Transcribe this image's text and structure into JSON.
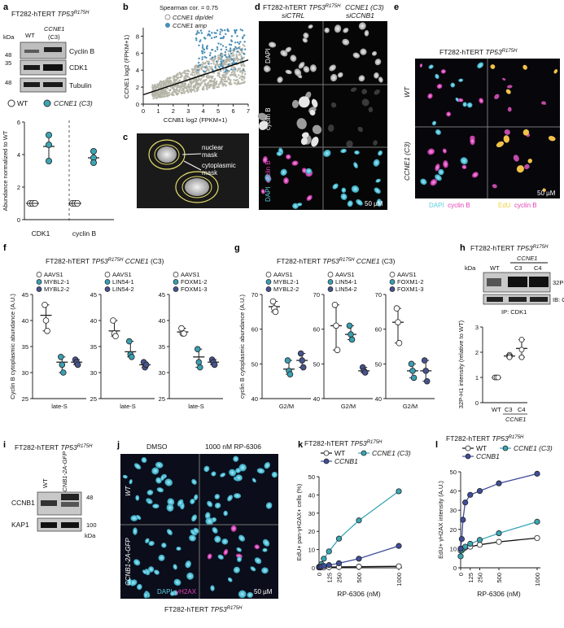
{
  "panel_labels": [
    "a",
    "b",
    "c",
    "d",
    "e",
    "f",
    "g",
    "h",
    "i",
    "j",
    "k",
    "l"
  ],
  "cell_line": "FT282-hTERT",
  "gene_tp53": "TP53",
  "mutation": "R175H",
  "panel_a": {
    "lanes": [
      "WT",
      "CCNE1",
      "(C3)"
    ],
    "kda": "kDa",
    "markers": [
      "48",
      "35",
      "48"
    ],
    "blots": [
      "Cyclin B",
      "CDK1",
      "Tubulin"
    ],
    "legend": [
      "WT",
      "CCNE1 (C3)"
    ]
  },
  "panel_b": {
    "corr": "Spearman cor. = 0.75",
    "legend": [
      "CCNE1 dip/del",
      "CCNE1 amp"
    ]
  },
  "panel_c": {
    "labels": [
      "nuclear",
      "mask",
      "cytoplasmic",
      "mask"
    ]
  },
  "panel_d": {
    "cols": [
      "FT282-hTERT TP53R175H",
      "CCNE1 (C3)",
      "siCTRL",
      "siCCNB1"
    ],
    "rows": [
      "DAPI",
      "cyclin B",
      "DAPI",
      "cyclin B"
    ],
    "scale": "50 µM"
  },
  "panel_e": {
    "rows": [
      "WT",
      "CCNE1 (C3)"
    ],
    "legend": [
      "DAPI",
      "cyclin B",
      "EdU",
      "cyclin B"
    ],
    "scale": "50 µM"
  },
  "panel_f_title": "FT282-hTERT TP53R175H CCNE1 (C3)",
  "panel_g_title": "FT282-hTERT TP53R175H CCNE1 (C3)",
  "panel_h": {
    "lanes": [
      "WT",
      "CCNE1",
      "C3",
      "C4"
    ],
    "kda": "kDa",
    "blots": [
      "32P-H1",
      "IB: CDK1"
    ],
    "ip": "IP: CDK1",
    "ylabel": "32P-H1 intensity (relative to WT)",
    "xt": [
      "WT",
      "C3",
      "C4",
      "CCNE1"
    ]
  },
  "panel_i": {
    "lanes": [
      "WT",
      "CCNB1-2A-GFP"
    ],
    "blots": [
      "CCNB1",
      "KAP1"
    ],
    "markers": [
      "48",
      "100"
    ],
    "kda": "kDa"
  },
  "panel_j": {
    "cols": [
      "DMSO",
      "1000 nM RP-6306"
    ],
    "rows": [
      "WT",
      "CCNB1-2A-GFP"
    ],
    "legend": [
      "DAPI",
      "γH2AX"
    ],
    "scale": "50 µM",
    "footer": "FT282-hTERT TP53R175H"
  },
  "chart_data": [
    {
      "id": "a-plot",
      "type": "scatter",
      "ylabel": "Abundance normalized to WT",
      "categories": [
        "CDK1",
        "cyclin B"
      ],
      "ylim": [
        0,
        6
      ],
      "yticks": [
        0,
        2,
        4,
        6
      ],
      "series": [
        {
          "name": "WT",
          "color": "#ffffff",
          "points": [
            [
              0,
              1.0
            ],
            [
              0,
              1.0
            ],
            [
              0,
              1.0
            ],
            [
              1,
              1.0
            ],
            [
              1,
              1.0
            ],
            [
              1,
              1.0
            ]
          ],
          "means": [
            1.0,
            1.0
          ]
        },
        {
          "name": "CCNE1 (C3)",
          "color": "#3aa6b4",
          "points": [
            [
              0,
              5.2
            ],
            [
              0,
              4.6
            ],
            [
              0,
              3.6
            ],
            [
              1,
              4.2
            ],
            [
              1,
              3.8
            ],
            [
              1,
              3.5
            ]
          ],
          "means": [
            4.5,
            3.8
          ]
        }
      ]
    },
    {
      "id": "b-plot",
      "type": "scatter",
      "xlabel": "CCNB1 log2 (FPKM+1)",
      "ylabel": "CCNE1 log2 (FPKM+1)",
      "xlim": [
        0,
        7
      ],
      "ylim": [
        0,
        9
      ],
      "xticks": [
        0,
        1,
        2,
        3,
        4,
        5,
        6,
        7
      ],
      "yticks": [
        0,
        2,
        4,
        6,
        8
      ],
      "fit": [
        [
          0,
          1.1
        ],
        [
          7,
          5.2
        ]
      ]
    },
    {
      "id": "f-plot",
      "type": "scatter",
      "ylabel": "Cyclin B cytoplasmic abundance (A.U.)",
      "ylim": [
        25,
        45
      ],
      "yticks": [
        25,
        30,
        35,
        40,
        45
      ],
      "groups": [
        {
          "xlabel": "late-S",
          "legend": [
            "AAVS1",
            "MYBL2-1",
            "MYBL2-2"
          ],
          "colors": [
            "#ffffff",
            "#3a9fb2",
            "#46538e"
          ],
          "points": [
            [
              43,
              40,
              38
            ],
            [
              33,
              31.5,
              30
            ],
            [
              32.5,
              32,
              31.5
            ]
          ],
          "means": [
            41,
            32,
            32
          ]
        },
        {
          "xlabel": "late-S",
          "legend": [
            "AAVS1",
            "LIN54-1",
            "LIN54-2"
          ],
          "colors": [
            "#ffffff",
            "#3a9fb2",
            "#46538e"
          ],
          "points": [
            [
              40,
              37.5,
              37
            ],
            [
              36,
              33.5,
              33
            ],
            [
              32,
              31,
              31.5
            ]
          ],
          "means": [
            38,
            34,
            31.5
          ]
        },
        {
          "xlabel": "late-S",
          "legend": [
            "AAVS1",
            "FOXM1-2",
            "FOXM1-3"
          ],
          "colors": [
            "#ffffff",
            "#3a9fb2",
            "#46538e"
          ],
          "points": [
            [
              38.5,
              37.5,
              37.5
            ],
            [
              34.5,
              32,
              31
            ],
            [
              32.5,
              32,
              31.5
            ]
          ],
          "means": [
            37.8,
            33,
            32
          ]
        }
      ]
    },
    {
      "id": "g-plot",
      "type": "scatter",
      "ylabel": "cyclin B cytoplasmic abundance (A.U.)",
      "ylim": [
        40,
        70
      ],
      "yticks": [
        40,
        50,
        60,
        70
      ],
      "groups": [
        {
          "xlabel": "G2/M",
          "legend": [
            "AAVS1",
            "MYBL2-1",
            "MYBL2-2"
          ],
          "colors": [
            "#ffffff",
            "#3a9fb2",
            "#46538e"
          ],
          "points": [
            [
              68,
              66,
              65
            ],
            [
              51,
              48,
              47
            ],
            [
              53,
              51,
              49
            ]
          ],
          "means": [
            66.5,
            48.5,
            51
          ]
        },
        {
          "xlabel": "G2/M",
          "legend": [
            "AAVS1",
            "LIN54-1",
            "LIN54-2"
          ],
          "colors": [
            "#ffffff",
            "#3a9fb2",
            "#46538e"
          ],
          "points": [
            [
              67,
              61,
              54
            ],
            [
              61,
              58.5,
              57
            ],
            [
              49,
              48,
              47.5
            ]
          ],
          "means": [
            61,
            58.5,
            48
          ]
        },
        {
          "xlabel": "G2/M",
          "legend": [
            "AAVS1",
            "FOXM1-2",
            "FOXM1-3"
          ],
          "colors": [
            "#ffffff",
            "#3a9fb2",
            "#46538e"
          ],
          "points": [
            [
              66,
              62,
              56
            ],
            [
              50,
              48,
              46
            ],
            [
              51,
              48,
              45
            ]
          ],
          "means": [
            62,
            48,
            48
          ]
        }
      ]
    },
    {
      "id": "h-plot",
      "type": "scatter",
      "ylim": [
        0,
        3
      ],
      "yticks": [
        0,
        1,
        2,
        3
      ],
      "categories": [
        "WT",
        "C3",
        "C4"
      ],
      "points": [
        [
          1.0,
          1.0,
          1.0
        ],
        [
          1.9,
          1.85,
          1.8
        ],
        [
          2.5,
          2.1,
          1.8
        ]
      ],
      "means": [
        1.0,
        1.85,
        2.15
      ]
    },
    {
      "id": "k-plot",
      "type": "line",
      "title": "FT282-hTERT TP53R175H",
      "xlabel": "RP-6306 (nM)",
      "ylabel": "EdU+ pan-γH2AX+ cells (%)",
      "xlim": [
        0,
        1000
      ],
      "ylim": [
        0,
        50
      ],
      "xticks": [
        0,
        125,
        250,
        500,
        1000
      ],
      "yticks": [
        0,
        10,
        20,
        30,
        40,
        50
      ],
      "x": [
        0,
        15,
        30,
        60,
        125,
        250,
        500,
        1000
      ],
      "series": [
        {
          "name": "WT",
          "color": "#ffffff",
          "line": "#111111",
          "values": [
            0.2,
            0.2,
            0.3,
            0.3,
            0.4,
            0.5,
            0.6,
            0.8
          ]
        },
        {
          "name": "CCNE1 (C3)",
          "color": "#3aa6b4",
          "line": "#3aa6b4",
          "values": [
            0.5,
            1,
            2,
            5,
            9,
            16,
            26,
            42
          ]
        },
        {
          "name": "CCNB1",
          "color": "#3f4d9a",
          "line": "#3f4d9a",
          "values": [
            0.3,
            0.5,
            0.8,
            1,
            1.5,
            2.5,
            5,
            12
          ]
        }
      ]
    },
    {
      "id": "l-plot",
      "type": "line",
      "title": "FT282-hTERT TP53R175H",
      "xlabel": "RP-6306 (nM)",
      "ylabel": "EdU+ γH2AX intensity (A.U.)",
      "xlim": [
        0,
        1000
      ],
      "ylim": [
        0,
        50
      ],
      "xticks": [
        0,
        125,
        250,
        500,
        1000
      ],
      "yticks": [
        0,
        10,
        20,
        30,
        40,
        50
      ],
      "x": [
        0,
        15,
        30,
        60,
        125,
        250,
        500,
        1000
      ],
      "series": [
        {
          "name": "WT",
          "color": "#ffffff",
          "line": "#111111",
          "values": [
            9,
            9.5,
            10,
            10.5,
            11,
            12,
            13.5,
            15.5
          ]
        },
        {
          "name": "CCNE1 (C3)",
          "color": "#3aa6b4",
          "line": "#3aa6b4",
          "values": [
            6,
            9,
            10,
            11,
            12.5,
            14.5,
            18,
            24
          ]
        },
        {
          "name": "CCNB1",
          "color": "#3f4d9a",
          "line": "#3f4d9a",
          "values": [
            10,
            15,
            25,
            34,
            38,
            40,
            44,
            49
          ]
        }
      ]
    }
  ]
}
